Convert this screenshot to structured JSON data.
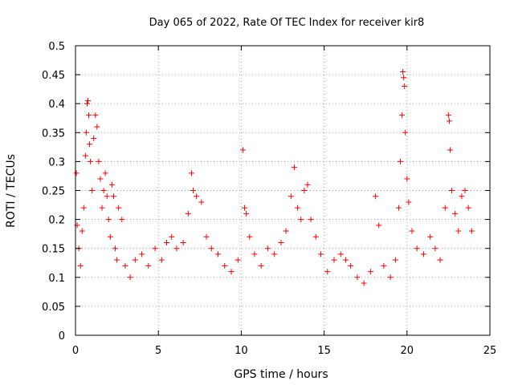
{
  "chart_data": {
    "type": "scatter",
    "title": "Day 065 of 2022, Rate Of TEC Index for receiver kir8",
    "xlabel": "GPS time / hours",
    "ylabel": "ROTI / TECUs",
    "xlim": [
      0,
      25
    ],
    "ylim": [
      0,
      0.5
    ],
    "x_ticks": [
      "0",
      "5",
      "10",
      "15",
      "20",
      "25"
    ],
    "y_ticks": [
      "0",
      "0.05",
      "0.1",
      "0.15",
      "0.2",
      "0.25",
      "0.3",
      "0.35",
      "0.4",
      "0.45",
      "0.5"
    ],
    "grid": true,
    "marker": "+",
    "color": "#ff0000",
    "series": [
      {
        "points": [
          [
            0.05,
            0.28
          ],
          [
            0.1,
            0.19
          ],
          [
            0.2,
            0.15
          ],
          [
            0.3,
            0.12
          ],
          [
            0.4,
            0.18
          ],
          [
            0.5,
            0.22
          ],
          [
            0.6,
            0.31
          ],
          [
            0.65,
            0.35
          ],
          [
            0.7,
            0.4
          ],
          [
            0.75,
            0.405
          ],
          [
            0.8,
            0.38
          ],
          [
            0.85,
            0.33
          ],
          [
            0.9,
            0.3
          ],
          [
            1.0,
            0.25
          ],
          [
            1.1,
            0.34
          ],
          [
            1.2,
            0.38
          ],
          [
            1.3,
            0.36
          ],
          [
            1.4,
            0.3
          ],
          [
            1.5,
            0.27
          ],
          [
            1.6,
            0.22
          ],
          [
            1.7,
            0.25
          ],
          [
            1.8,
            0.28
          ],
          [
            1.9,
            0.24
          ],
          [
            2.0,
            0.2
          ],
          [
            2.1,
            0.17
          ],
          [
            2.2,
            0.26
          ],
          [
            2.3,
            0.24
          ],
          [
            2.4,
            0.15
          ],
          [
            2.5,
            0.13
          ],
          [
            2.6,
            0.22
          ],
          [
            2.8,
            0.2
          ],
          [
            3.0,
            0.12
          ],
          [
            3.3,
            0.1
          ],
          [
            3.6,
            0.13
          ],
          [
            4.0,
            0.14
          ],
          [
            4.4,
            0.12
          ],
          [
            4.8,
            0.15
          ],
          [
            5.2,
            0.13
          ],
          [
            5.5,
            0.16
          ],
          [
            5.8,
            0.17
          ],
          [
            6.1,
            0.15
          ],
          [
            6.5,
            0.16
          ],
          [
            6.8,
            0.21
          ],
          [
            7.0,
            0.28
          ],
          [
            7.1,
            0.25
          ],
          [
            7.3,
            0.24
          ],
          [
            7.6,
            0.23
          ],
          [
            7.9,
            0.17
          ],
          [
            8.2,
            0.15
          ],
          [
            8.6,
            0.14
          ],
          [
            9.0,
            0.12
          ],
          [
            9.4,
            0.11
          ],
          [
            9.8,
            0.13
          ],
          [
            10.1,
            0.32
          ],
          [
            10.2,
            0.22
          ],
          [
            10.3,
            0.21
          ],
          [
            10.5,
            0.17
          ],
          [
            10.8,
            0.14
          ],
          [
            11.2,
            0.12
          ],
          [
            11.6,
            0.15
          ],
          [
            12.0,
            0.14
          ],
          [
            12.4,
            0.16
          ],
          [
            12.7,
            0.18
          ],
          [
            13.0,
            0.24
          ],
          [
            13.2,
            0.29
          ],
          [
            13.4,
            0.22
          ],
          [
            13.6,
            0.2
          ],
          [
            13.8,
            0.25
          ],
          [
            14.0,
            0.26
          ],
          [
            14.2,
            0.2
          ],
          [
            14.5,
            0.17
          ],
          [
            14.8,
            0.14
          ],
          [
            15.2,
            0.11
          ],
          [
            15.6,
            0.13
          ],
          [
            16.0,
            0.14
          ],
          [
            16.3,
            0.13
          ],
          [
            16.6,
            0.12
          ],
          [
            17.0,
            0.1
          ],
          [
            17.4,
            0.09
          ],
          [
            17.8,
            0.11
          ],
          [
            18.1,
            0.24
          ],
          [
            18.3,
            0.19
          ],
          [
            18.6,
            0.12
          ],
          [
            19.0,
            0.1
          ],
          [
            19.3,
            0.13
          ],
          [
            19.5,
            0.22
          ],
          [
            19.6,
            0.3
          ],
          [
            19.7,
            0.38
          ],
          [
            19.75,
            0.455
          ],
          [
            19.8,
            0.445
          ],
          [
            19.85,
            0.43
          ],
          [
            19.9,
            0.35
          ],
          [
            20.0,
            0.27
          ],
          [
            20.1,
            0.23
          ],
          [
            20.3,
            0.18
          ],
          [
            20.6,
            0.15
          ],
          [
            21.0,
            0.14
          ],
          [
            21.4,
            0.17
          ],
          [
            21.7,
            0.15
          ],
          [
            22.0,
            0.13
          ],
          [
            22.3,
            0.22
          ],
          [
            22.5,
            0.38
          ],
          [
            22.55,
            0.37
          ],
          [
            22.6,
            0.32
          ],
          [
            22.7,
            0.25
          ],
          [
            22.9,
            0.21
          ],
          [
            23.1,
            0.18
          ],
          [
            23.3,
            0.24
          ],
          [
            23.5,
            0.25
          ],
          [
            23.7,
            0.22
          ],
          [
            23.9,
            0.18
          ]
        ]
      }
    ]
  }
}
